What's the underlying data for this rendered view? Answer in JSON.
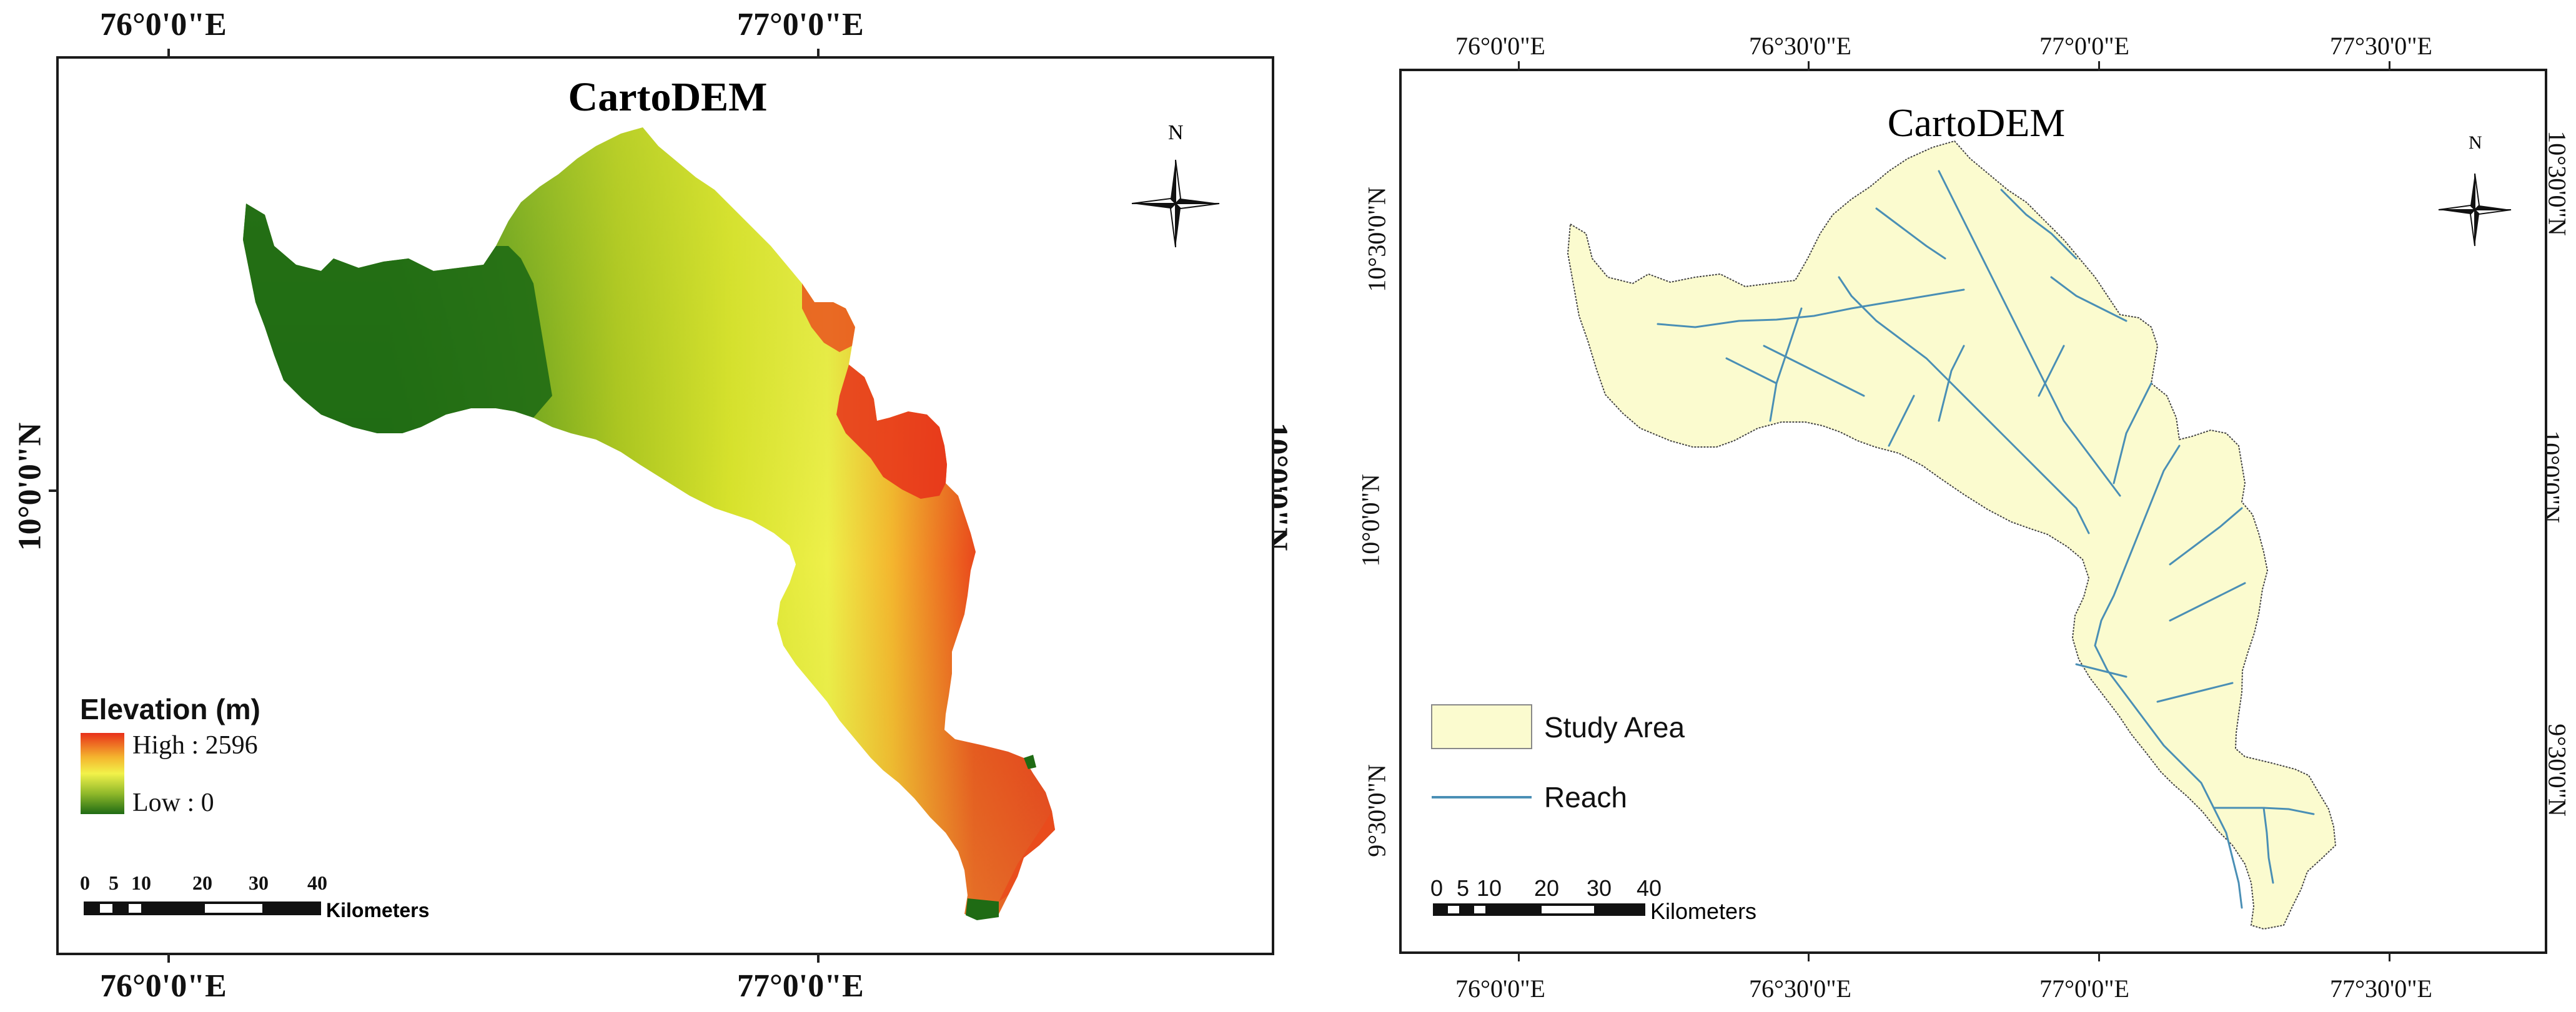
{
  "left_map": {
    "title": "CartoDEM",
    "top_lon_labels": [
      "76°0'0\"E",
      "77°0'0\"E"
    ],
    "bottom_lon_labels": [
      "76°0'0\"E",
      "77°0'0\"E"
    ],
    "left_lat_label": "10°0'0\"N",
    "right_lat_label": "10°0'0\"N",
    "north_label": "N",
    "legend": {
      "title": "Elevation (m)",
      "high_label": "High : 2596",
      "low_label": "Low : 0",
      "high_color": "#e8301a",
      "mid_color": "#f2f24a",
      "low_color": "#1f6b14"
    },
    "scale_bar": {
      "labels": [
        "0",
        "5",
        "10",
        "20",
        "30",
        "40"
      ],
      "unit": "Kilometers"
    }
  },
  "right_map": {
    "title": "CartoDEM",
    "top_lon_labels": [
      "76°0'0\"E",
      "76°30'0\"E",
      "77°0'0\"E",
      "77°30'0\"E"
    ],
    "bottom_lon_labels": [
      "76°0'0\"E",
      "76°30'0\"E",
      "77°0'0\"E",
      "77°30'0\"E"
    ],
    "left_lat_labels": [
      "10°30'0\"N",
      "10°0'0\"N",
      "9°30'0\"N"
    ],
    "right_lat_labels": [
      "10°30'0\"N",
      "10°0'0\"N",
      "9°30'0\"N"
    ],
    "north_label": "N",
    "legend": {
      "study_area_label": "Study Area",
      "reach_label": "Reach",
      "study_area_color": "#fbfbcf",
      "reach_color": "#4a8fb5"
    },
    "scale_bar": {
      "labels": [
        "0",
        "5",
        "10",
        "20",
        "30",
        "40"
      ],
      "unit": "Kilometers"
    }
  }
}
